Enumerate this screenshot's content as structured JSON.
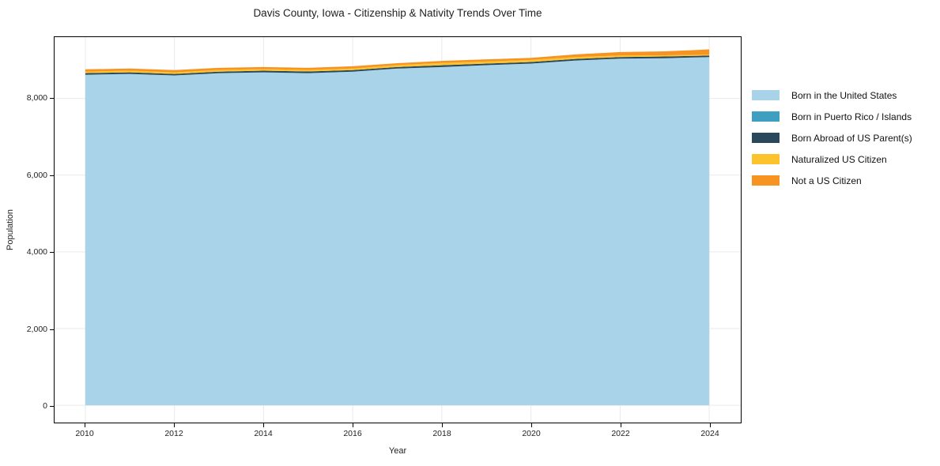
{
  "title": "Davis County, Iowa - Citizenship & Nativity Trends Over Time",
  "chart_data": {
    "type": "area",
    "stacked": true,
    "title": "Davis County, Iowa - Citizenship & Nativity Trends Over Time",
    "xlabel": "Year",
    "ylabel": "Population",
    "grid": true,
    "legend_position": "outside right",
    "background": "#ffffff",
    "gridline_color": "#e9e9e9",
    "xlim": [
      2009.3,
      2024.7
    ],
    "ylim": [
      0,
      9600
    ],
    "x_ticks": [
      2010,
      2012,
      2014,
      2016,
      2018,
      2020,
      2022,
      2024
    ],
    "x_tick_labels": [
      "2010",
      "2012",
      "2014",
      "2016",
      "2018",
      "2020",
      "2022",
      "2024"
    ],
    "y_ticks": [
      0,
      2000,
      4000,
      6000,
      8000
    ],
    "y_tick_labels": [
      "0",
      "2,000",
      "4,000",
      "6,000",
      "8,000"
    ],
    "x": [
      2010,
      2011,
      2012,
      2013,
      2014,
      2015,
      2016,
      2017,
      2018,
      2019,
      2020,
      2021,
      2022,
      2023,
      2024
    ],
    "series": [
      {
        "name": "Born in the United States",
        "color": "#a8d3e8",
        "values": [
          8620,
          8640,
          8600,
          8660,
          8680,
          8660,
          8700,
          8780,
          8820,
          8870,
          8910,
          8990,
          9040,
          9050,
          9080
        ]
      },
      {
        "name": "Born in Puerto Rico / Islands",
        "color": "#3f9fc0",
        "values": [
          0,
          0,
          0,
          0,
          0,
          0,
          0,
          0,
          0,
          0,
          0,
          0,
          0,
          0,
          0
        ]
      },
      {
        "name": "Born Abroad of US Parent(s)",
        "color": "#29485c",
        "values": [
          40,
          40,
          40,
          40,
          45,
          45,
          40,
          40,
          45,
          40,
          40,
          40,
          40,
          45,
          40
        ]
      },
      {
        "name": "Naturalized US Citizen",
        "color": "#fcc32d",
        "values": [
          40,
          45,
          40,
          45,
          40,
          40,
          40,
          50,
          60,
          55,
          55,
          50,
          40,
          30,
          25
        ]
      },
      {
        "name": "Not a US Citizen",
        "color": "#f79421",
        "values": [
          60,
          55,
          60,
          55,
          55,
          55,
          60,
          50,
          55,
          55,
          55,
          70,
          90,
          105,
          135
        ]
      }
    ]
  }
}
